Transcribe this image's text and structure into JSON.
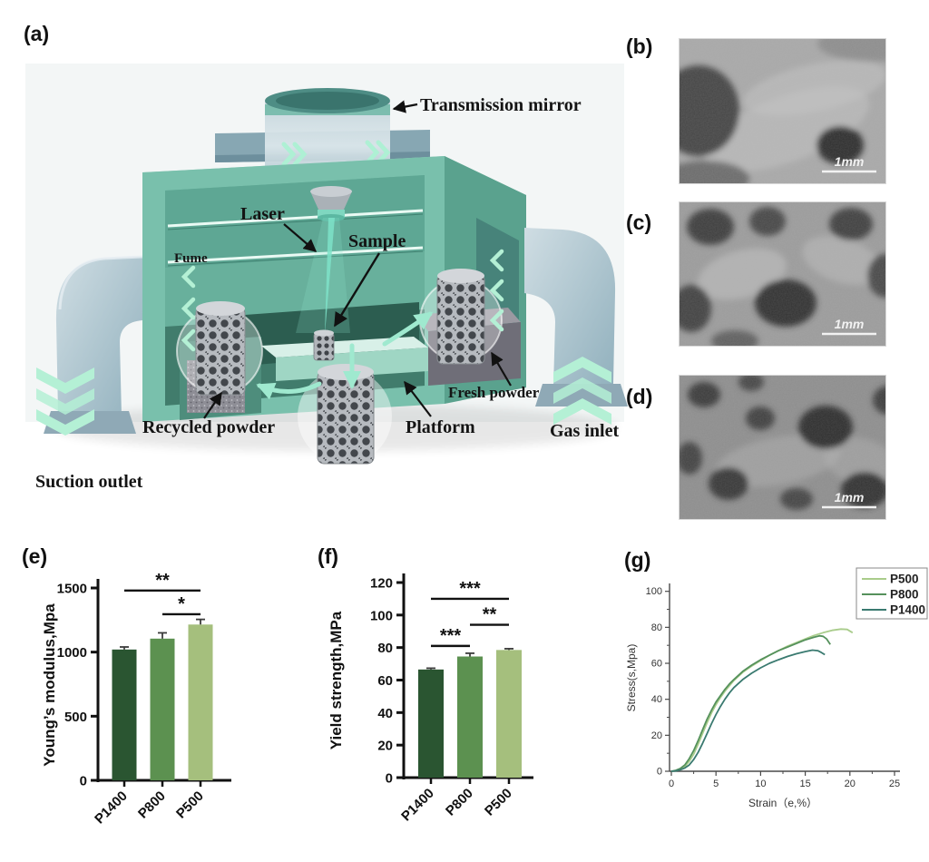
{
  "panels": {
    "a": "(a)",
    "b": "(b)",
    "c": "(c)",
    "d": "(d)",
    "e": "(e)",
    "f": "(f)",
    "g": "(g)"
  },
  "machine": {
    "labels": {
      "transmission_mirror": "Transmission mirror",
      "laser": "Laser",
      "sample": "Sample",
      "fume": "Fume",
      "recycled_powder": "Recycled powder",
      "platform": "Platform",
      "fresh_powder": "Fresh powder",
      "gas_inlet": "Gas inlet",
      "suction_outlet": "Suction outlet"
    }
  },
  "sem": {
    "scale_bar": "1mm"
  },
  "chart_data": [
    {
      "id": "e",
      "type": "bar",
      "ylabel": "Young’s modulus,Mpa",
      "categories": [
        "P1400",
        "P800",
        "P500"
      ],
      "values": [
        1020,
        1105,
        1215
      ],
      "errors": [
        20,
        45,
        40
      ],
      "colors": [
        "#2a5531",
        "#5c9150",
        "#a5bf7d"
      ],
      "ylim": [
        0,
        1500
      ],
      "yticks": [
        0,
        500,
        1000,
        1500
      ],
      "significance": [
        {
          "from": 0,
          "to": 2,
          "label": "**",
          "y": 1480
        },
        {
          "from": 1,
          "to": 2,
          "label": "*",
          "y": 1295
        }
      ]
    },
    {
      "id": "f",
      "type": "bar",
      "ylabel": "Yield strength,MPa",
      "categories": [
        "P1400",
        "P800",
        "P500"
      ],
      "values": [
        66.5,
        74.5,
        78.5
      ],
      "errors": [
        0.8,
        2,
        0.8
      ],
      "colors": [
        "#2a5531",
        "#5c9150",
        "#a5bf7d"
      ],
      "ylim": [
        0,
        120
      ],
      "yticks": [
        0,
        20,
        40,
        60,
        80,
        100,
        120
      ],
      "significance": [
        {
          "from": 0,
          "to": 1,
          "label": "***",
          "y": 81
        },
        {
          "from": 1,
          "to": 2,
          "label": "**",
          "y": 94
        },
        {
          "from": 0,
          "to": 2,
          "label": "***",
          "y": 110
        }
      ]
    },
    {
      "id": "g",
      "type": "line",
      "xlabel": "Strain（e,%）",
      "ylabel": "Stress(s,Mpa)",
      "xlim": [
        0,
        25
      ],
      "ylim": [
        0,
        100
      ],
      "xticks": [
        0,
        5,
        10,
        15,
        20,
        25
      ],
      "yticks": [
        0,
        20,
        40,
        60,
        80,
        100
      ],
      "legend_position": "top-right",
      "series": [
        {
          "name": "P500",
          "color": "#a9cc8b",
          "points": [
            [
              0,
              0
            ],
            [
              0.5,
              0.3
            ],
            [
              1,
              1
            ],
            [
              1.5,
              2.5
            ],
            [
              2,
              5.5
            ],
            [
              2.5,
              9.5
            ],
            [
              3,
              15
            ],
            [
              3.5,
              21
            ],
            [
              4,
              27
            ],
            [
              4.5,
              32.5
            ],
            [
              5,
              37
            ],
            [
              5.5,
              41
            ],
            [
              6,
              44.5
            ],
            [
              6.5,
              47.5
            ],
            [
              7,
              50.5
            ],
            [
              8,
              55
            ],
            [
              9,
              58.5
            ],
            [
              10,
              61.5
            ],
            [
              11,
              64.5
            ],
            [
              12,
              67
            ],
            [
              13,
              69.5
            ],
            [
              14,
              71.5
            ],
            [
              15,
              73.5
            ],
            [
              16,
              75.5
            ],
            [
              17,
              77
            ],
            [
              18,
              78.3
            ],
            [
              19,
              79
            ],
            [
              19.7,
              78.8
            ],
            [
              20.3,
              77
            ]
          ]
        },
        {
          "name": "P800",
          "color": "#55915c",
          "points": [
            [
              0,
              0
            ],
            [
              0.5,
              0.5
            ],
            [
              1,
              1.5
            ],
            [
              1.5,
              3.5
            ],
            [
              2,
              7
            ],
            [
              2.5,
              11.5
            ],
            [
              3,
              17
            ],
            [
              3.5,
              23
            ],
            [
              4,
              29
            ],
            [
              4.5,
              34
            ],
            [
              5,
              38.5
            ],
            [
              5.5,
              42
            ],
            [
              6,
              45.5
            ],
            [
              6.5,
              48.5
            ],
            [
              7,
              51
            ],
            [
              8,
              55.5
            ],
            [
              9,
              59
            ],
            [
              10,
              62
            ],
            [
              11,
              64.5
            ],
            [
              12,
              67
            ],
            [
              13,
              69
            ],
            [
              14,
              71
            ],
            [
              15,
              73
            ],
            [
              16,
              74.5
            ],
            [
              16.6,
              75.3
            ],
            [
              17,
              75
            ],
            [
              17.4,
              73.5
            ],
            [
              17.8,
              70.5
            ]
          ]
        },
        {
          "name": "P1400",
          "color": "#3a7a70",
          "points": [
            [
              0,
              0
            ],
            [
              0.5,
              0.2
            ],
            [
              1,
              0.8
            ],
            [
              1.5,
              1.8
            ],
            [
              2,
              3.5
            ],
            [
              2.5,
              6.5
            ],
            [
              3,
              10.5
            ],
            [
              3.5,
              15.5
            ],
            [
              4,
              21
            ],
            [
              4.5,
              26.5
            ],
            [
              5,
              31.5
            ],
            [
              5.5,
              36
            ],
            [
              6,
              40
            ],
            [
              6.5,
              43.5
            ],
            [
              7,
              46.5
            ],
            [
              8,
              51
            ],
            [
              9,
              54.5
            ],
            [
              10,
              57.5
            ],
            [
              11,
              60
            ],
            [
              12,
              62
            ],
            [
              13,
              63.8
            ],
            [
              14,
              65.3
            ],
            [
              15,
              66.5
            ],
            [
              15.8,
              67.3
            ],
            [
              16.4,
              67
            ],
            [
              16.8,
              66
            ],
            [
              17.2,
              64.8
            ]
          ]
        }
      ]
    }
  ]
}
